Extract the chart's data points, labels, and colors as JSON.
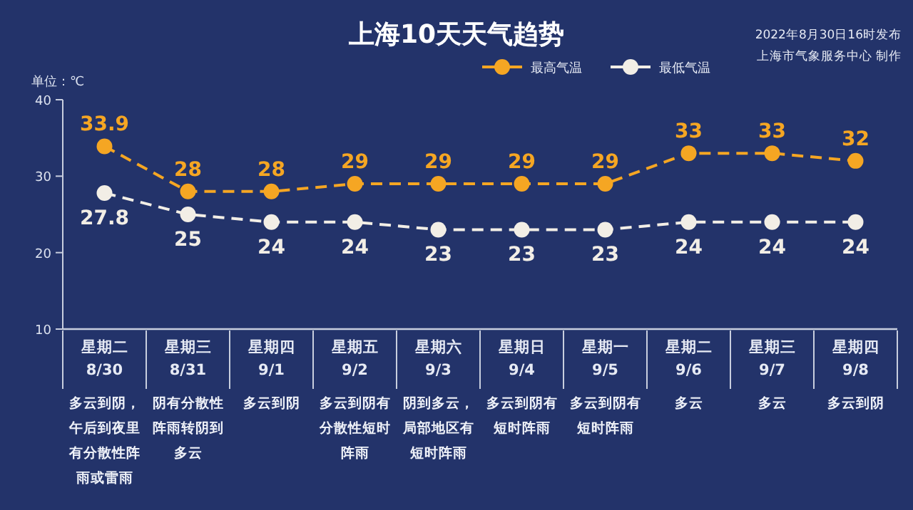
{
  "chart_data": {
    "type": "line",
    "title": "上海10天天气趋势",
    "ylabel": "单位：℃",
    "categories": [
      "星期二\n8/30",
      "星期三\n8/31",
      "星期四\n9/1",
      "星期五\n9/2",
      "星期六\n9/3",
      "星期日\n9/4",
      "星期一\n9/5",
      "星期二\n9/6",
      "星期三\n9/7",
      "星期四\n9/8"
    ],
    "series": [
      {
        "name": "最高气温",
        "color": "#f5a623",
        "values": [
          33.9,
          28,
          28,
          29,
          29,
          29,
          29,
          33,
          33,
          32
        ]
      },
      {
        "name": "最低气温",
        "color": "#f2eee6",
        "values": [
          27.8,
          25,
          24,
          24,
          23,
          23,
          23,
          24,
          24,
          24
        ]
      }
    ],
    "ylim": [
      10,
      40
    ],
    "yticks": [
      10,
      20,
      30,
      40
    ],
    "marker": "circle",
    "line_style": "dashed",
    "legend": "top right",
    "data_labels": true,
    "annotations": [
      "2022年8月30日16时发布",
      "上海市气象服务中心 制作",
      "多云到阴，午后到夜里有分散性阵雨或雷雨",
      "阴有分散性阵雨转阴到多云",
      "多云到阴",
      "多云到阴有分散性短时阵雨",
      "阴到多云，局部地区有短时阵雨",
      "多云到阴有短时阵雨",
      "多云到阴有短时阵雨",
      "多云",
      "多云",
      "多云到阴"
    ]
  }
}
